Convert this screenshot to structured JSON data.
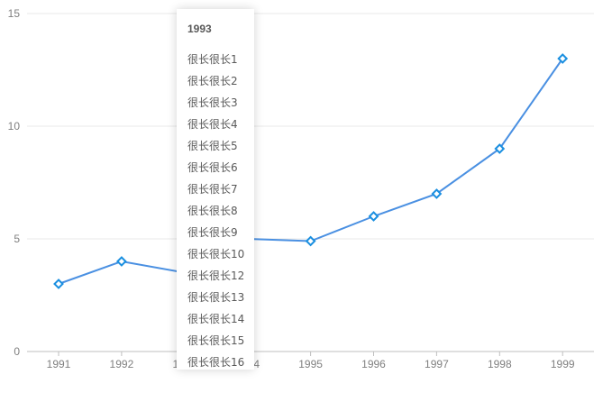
{
  "chart_data": {
    "type": "line",
    "categories": [
      "1991",
      "1992",
      "1993",
      "1994",
      "1995",
      "1996",
      "1997",
      "1998",
      "1999"
    ],
    "series": [
      {
        "values": [
          3,
          4,
          3.5,
          5,
          4.9,
          6,
          7,
          9,
          13
        ]
      }
    ],
    "yticks": [
      "0",
      "5",
      "10",
      "15"
    ],
    "ylim": [
      0,
      15
    ],
    "grid": true,
    "colors": {
      "line": "#4a90e2",
      "marker": "#1a8fe0"
    },
    "marker": "diamond"
  },
  "tooltip": {
    "title": "1993",
    "items": [
      "很长很长1",
      "很长很长2",
      "很长很长3",
      "很长很长4",
      "很长很长5",
      "很长很长6",
      "很长很长7",
      "很长很长8",
      "很长很长9",
      "很长很长10",
      "很长很长12",
      "很长很长13",
      "很长很长14",
      "很长很长15",
      "很长很长16"
    ]
  }
}
